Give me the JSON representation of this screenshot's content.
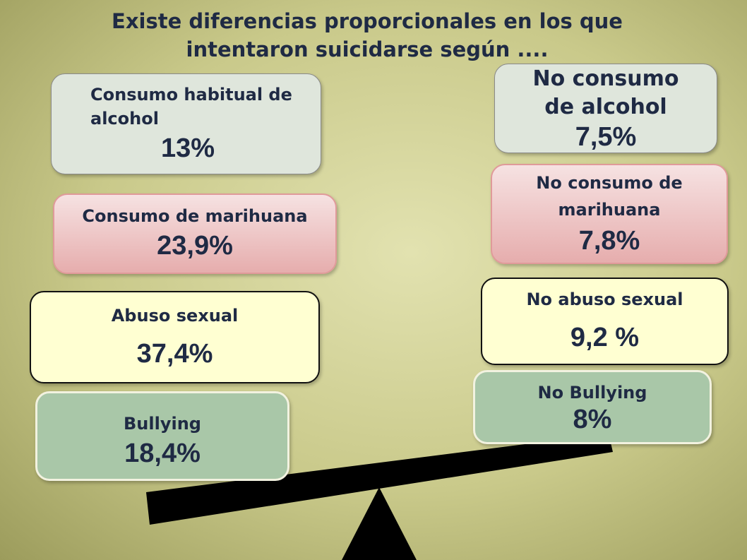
{
  "title": "Existe diferencias  proporcionales en los que intentaron suicidarse según ....",
  "left": [
    {
      "label": "Consumo habitual de alcohol",
      "value": "13%"
    },
    {
      "label": "Consumo de marihuana",
      "value": "23,9%"
    },
    {
      "label": "Abuso sexual",
      "value": "37,4%"
    },
    {
      "label": "Bullying",
      "value": "18,4%"
    }
  ],
  "right": [
    {
      "label": "No consumo de alcohol",
      "value": "7,5%"
    },
    {
      "label": "No consumo de marihuana",
      "value": "7,8%"
    },
    {
      "label": "No abuso sexual",
      "value": "9,2 %"
    },
    {
      "label": "No Bullying",
      "value": "8%"
    }
  ]
}
